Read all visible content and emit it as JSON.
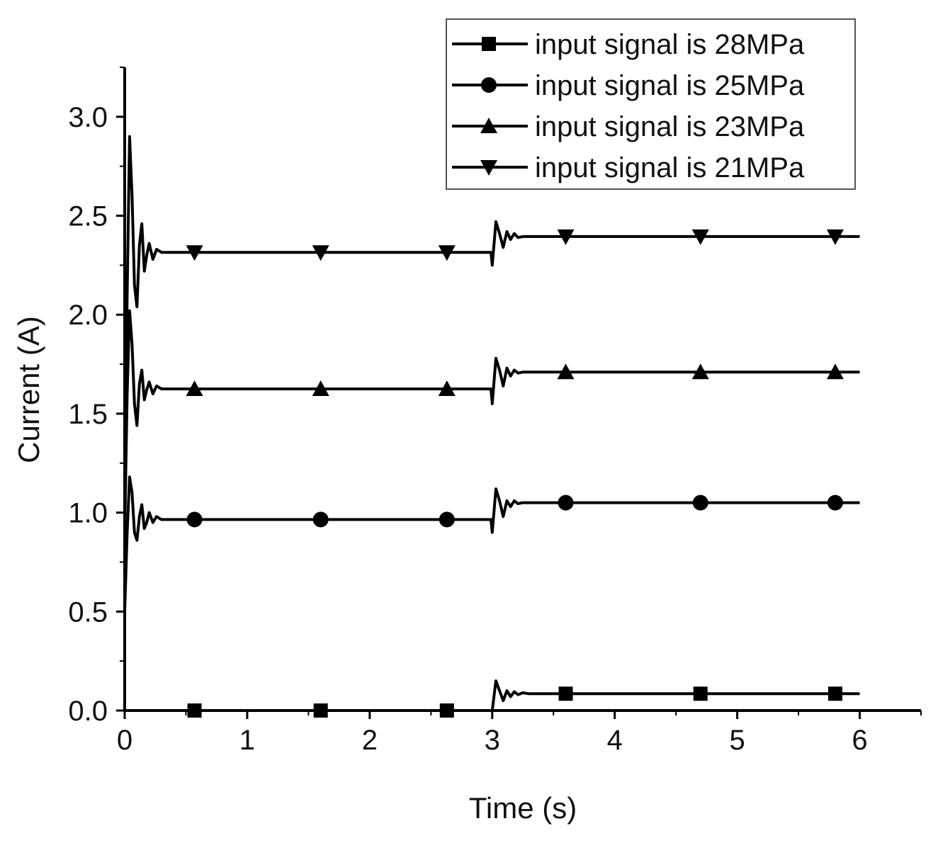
{
  "chart_data": {
    "type": "line",
    "xlabel": "Time (s)",
    "ylabel": "Current (A)",
    "xlim": [
      0,
      6.5
    ],
    "ylim": [
      0,
      3.25
    ],
    "xticks": [
      0,
      1,
      2,
      3,
      4,
      5,
      6
    ],
    "xtick_labels": [
      "0",
      "1",
      "2",
      "3",
      "4",
      "5",
      "6"
    ],
    "yticks": [
      0.0,
      0.5,
      1.0,
      1.5,
      2.0,
      2.5,
      3.0
    ],
    "ytick_labels": [
      "0.0",
      "0.5",
      "1.0",
      "1.5",
      "2.0",
      "2.5",
      "3.0"
    ],
    "grid": false,
    "legend_position": "top-right",
    "line_color": "#000000",
    "series": [
      {
        "name": "input signal is 28MPa",
        "marker": "square",
        "x": [
          0,
          0.5,
          1.0,
          1.5,
          2.0,
          2.5,
          2.99,
          3.0,
          3.03,
          3.06,
          3.09,
          3.12,
          3.15,
          3.18,
          3.21,
          3.25,
          3.3,
          4.0,
          5.0,
          6.0
        ],
        "y": [
          0,
          0,
          0,
          0,
          0,
          0,
          0,
          0.0,
          0.15,
          0.1,
          0.05,
          0.1,
          0.07,
          0.095,
          0.08,
          0.09,
          0.085,
          0.085,
          0.085,
          0.085
        ],
        "marker_x": [
          0.57,
          1.6,
          2.63,
          3.6,
          4.7,
          5.8
        ],
        "marker_y": [
          0.0,
          0.0,
          0.0,
          0.085,
          0.085,
          0.085
        ]
      },
      {
        "name": "input signal is 25MPa",
        "marker": "circle",
        "x": [
          0,
          0.02,
          0.04,
          0.06,
          0.08,
          0.1,
          0.12,
          0.14,
          0.16,
          0.18,
          0.2,
          0.23,
          0.26,
          0.3,
          0.4,
          1.0,
          2.0,
          2.99,
          3.0,
          3.03,
          3.06,
          3.09,
          3.12,
          3.15,
          3.18,
          3.21,
          3.25,
          3.3,
          4.0,
          5.0,
          6.0
        ],
        "y": [
          0.5,
          0.9,
          1.18,
          1.1,
          0.9,
          0.86,
          0.98,
          1.04,
          0.92,
          0.95,
          1.0,
          0.95,
          0.98,
          0.965,
          0.965,
          0.965,
          0.965,
          0.965,
          0.9,
          1.12,
          1.06,
          0.98,
          1.06,
          1.03,
          1.06,
          1.045,
          1.05,
          1.05,
          1.05,
          1.05,
          1.05
        ],
        "marker_x": [
          0.57,
          1.6,
          2.63,
          3.6,
          4.7,
          5.8
        ],
        "marker_y": [
          0.965,
          0.965,
          0.965,
          1.05,
          1.05,
          1.05
        ]
      },
      {
        "name": "input signal is 23MPa",
        "marker": "triangle-up",
        "x": [
          0,
          0.02,
          0.04,
          0.06,
          0.08,
          0.1,
          0.12,
          0.14,
          0.16,
          0.18,
          0.2,
          0.23,
          0.26,
          0.3,
          0.4,
          1.0,
          2.0,
          2.99,
          3.0,
          3.03,
          3.06,
          3.09,
          3.12,
          3.15,
          3.18,
          3.21,
          3.25,
          3.3,
          4.0,
          5.0,
          6.0
        ],
        "y": [
          0.9,
          1.6,
          2.02,
          1.85,
          1.55,
          1.44,
          1.65,
          1.72,
          1.57,
          1.62,
          1.66,
          1.6,
          1.64,
          1.625,
          1.625,
          1.625,
          1.625,
          1.625,
          1.55,
          1.78,
          1.72,
          1.64,
          1.73,
          1.69,
          1.72,
          1.705,
          1.71,
          1.71,
          1.71,
          1.71,
          1.71
        ],
        "marker_x": [
          0.57,
          1.6,
          2.63,
          3.6,
          4.7,
          5.8
        ],
        "marker_y": [
          1.625,
          1.625,
          1.625,
          1.71,
          1.71,
          1.71
        ]
      },
      {
        "name": "input signal is 21MPa",
        "marker": "triangle-down",
        "x": [
          0,
          0.02,
          0.04,
          0.06,
          0.08,
          0.1,
          0.12,
          0.14,
          0.16,
          0.18,
          0.2,
          0.23,
          0.26,
          0.3,
          0.4,
          1.0,
          2.0,
          2.99,
          3.0,
          3.03,
          3.06,
          3.09,
          3.12,
          3.15,
          3.18,
          3.21,
          3.25,
          3.3,
          4.0,
          5.0,
          6.0
        ],
        "y": [
          1.2,
          2.1,
          2.9,
          2.6,
          2.15,
          2.04,
          2.35,
          2.46,
          2.22,
          2.3,
          2.36,
          2.28,
          2.33,
          2.315,
          2.315,
          2.315,
          2.315,
          2.315,
          2.25,
          2.47,
          2.41,
          2.34,
          2.42,
          2.38,
          2.41,
          2.39,
          2.395,
          2.395,
          2.395,
          2.395,
          2.395
        ],
        "marker_x": [
          0.57,
          1.6,
          2.63,
          3.6,
          4.7,
          5.8
        ],
        "marker_y": [
          2.315,
          2.315,
          2.315,
          2.395,
          2.395,
          2.395
        ]
      }
    ]
  }
}
